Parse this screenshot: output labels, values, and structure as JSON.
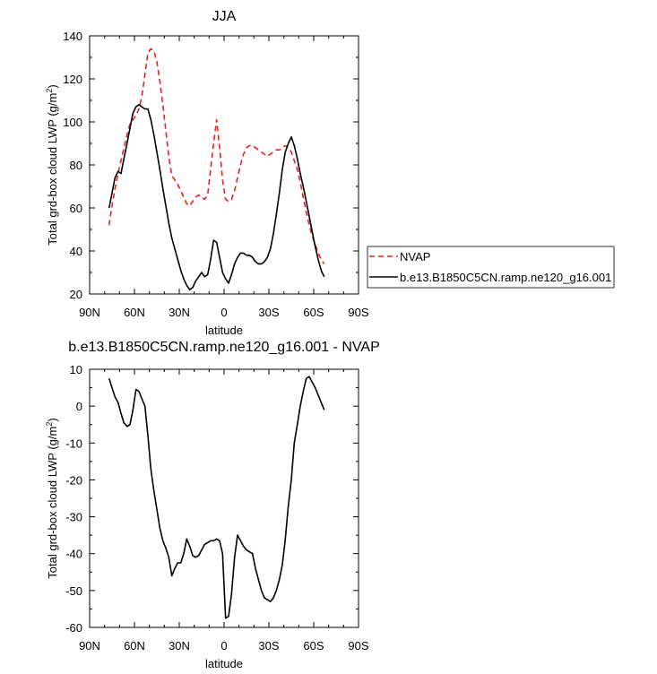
{
  "chart_data": [
    {
      "type": "line",
      "title": "JJA",
      "xlabel": "latitude",
      "ylabel": "Total grd-box cloud LWP (g/m",
      "ylabel_sup": "2",
      "ylabel_end": ")",
      "xlim": [
        90,
        -90
      ],
      "ylim": [
        20,
        140
      ],
      "xticks": [
        90,
        60,
        30,
        0,
        -30,
        -60,
        -90
      ],
      "xtick_labels": [
        "90N",
        "60N",
        "30N",
        "0",
        "30S",
        "60S",
        "90S"
      ],
      "yticks": [
        20,
        40,
        60,
        80,
        100,
        120,
        140
      ],
      "ytick_labels": [
        "20",
        "40",
        "60",
        "80",
        "100",
        "120",
        "140"
      ],
      "legend": {
        "placement": "right",
        "entries": [
          "NVAP",
          "b.e13.B1850C5CN.ramp.ne120_g16.001"
        ]
      },
      "series": [
        {
          "name": "NVAP",
          "color": "#e8211d",
          "dash": "dashed",
          "x": [
            77,
            75,
            73,
            71,
            69,
            67,
            65,
            63,
            61,
            59,
            57,
            55,
            53,
            51,
            49,
            47,
            45,
            43,
            41,
            39,
            37,
            35,
            33,
            31,
            29,
            27,
            25,
            23,
            21,
            19,
            17,
            15,
            13,
            11,
            9,
            7,
            5,
            3,
            1,
            -1,
            -3,
            -5,
            -7,
            -9,
            -11,
            -13,
            -15,
            -17,
            -19,
            -21,
            -23,
            -25,
            -27,
            -29,
            -31,
            -33,
            -35,
            -37,
            -39,
            -41,
            -43,
            -45,
            -47,
            -49,
            -51,
            -53,
            -55,
            -57,
            -59,
            -61,
            -63,
            -65,
            -67
          ],
          "y": [
            52,
            61,
            69,
            76,
            82,
            88,
            94,
            99,
            101,
            103,
            106,
            112,
            122,
            132,
            134,
            133,
            128,
            119,
            108,
            96,
            84,
            75,
            73,
            71,
            68,
            65,
            62,
            61,
            63,
            65,
            66,
            65,
            64,
            66,
            78,
            90,
            101,
            88,
            73,
            64,
            63,
            64,
            68,
            74,
            80,
            85,
            88,
            89,
            89,
            88,
            87,
            86,
            85,
            84,
            85,
            86,
            87,
            87,
            88,
            89,
            88,
            86,
            82,
            78,
            72,
            65,
            58,
            52,
            47,
            43,
            39,
            36,
            34
          ]
        },
        {
          "name": "b.e13.B1850C5CN.ramp.ne120_g16.001",
          "color": "#000000",
          "dash": "solid",
          "x": [
            77,
            75,
            73,
            71,
            69,
            67,
            65,
            63,
            61,
            59,
            57,
            55,
            53,
            51,
            49,
            47,
            45,
            43,
            41,
            39,
            37,
            35,
            33,
            31,
            29,
            27,
            25,
            23,
            21,
            19,
            17,
            15,
            13,
            11,
            9,
            7,
            5,
            3,
            1,
            -1,
            -3,
            -5,
            -7,
            -9,
            -11,
            -13,
            -15,
            -17,
            -19,
            -21,
            -23,
            -25,
            -27,
            -29,
            -31,
            -33,
            -35,
            -37,
            -39,
            -41,
            -43,
            -45,
            -47,
            -49,
            -51,
            -53,
            -55,
            -57,
            -59,
            -61,
            -63,
            -65,
            -67
          ],
          "y": [
            60,
            67,
            74,
            77,
            76,
            83,
            90,
            97,
            104,
            107,
            108,
            107,
            106,
            106,
            101,
            94,
            86,
            78,
            69,
            61,
            53,
            46,
            41,
            36,
            31,
            27,
            24,
            22,
            23,
            26,
            28,
            30,
            28,
            29,
            36,
            45,
            44,
            37,
            30,
            27,
            25,
            29,
            34,
            37,
            39,
            39,
            38,
            38,
            37,
            35,
            34,
            34,
            35,
            37,
            41,
            48,
            57,
            67,
            78,
            86,
            90,
            93,
            89,
            83,
            76,
            70,
            63,
            56,
            49,
            42,
            36,
            31,
            28
          ]
        }
      ]
    },
    {
      "type": "line",
      "title": "b.e13.B1850C5CN.ramp.ne120_g16.001 - NVAP",
      "xlabel": "latitude",
      "ylabel": "Total grd-box cloud LWP (g/m",
      "ylabel_sup": "2",
      "ylabel_end": ")",
      "xlim": [
        90,
        -90
      ],
      "ylim": [
        -60,
        10
      ],
      "xticks": [
        90,
        60,
        30,
        0,
        -30,
        -60,
        -90
      ],
      "xtick_labels": [
        "90N",
        "60N",
        "30N",
        "0",
        "30S",
        "60S",
        "90S"
      ],
      "yticks": [
        -60,
        -50,
        -40,
        -30,
        -20,
        -10,
        0,
        10
      ],
      "ytick_labels": [
        "-60",
        "-50",
        "-40",
        "-30",
        "-20",
        "-10",
        "0",
        "10"
      ],
      "series": [
        {
          "color": "#000000",
          "dash": "solid",
          "x": [
            77,
            75,
            73,
            71,
            69,
            67,
            65,
            63,
            61,
            59,
            57,
            55,
            53,
            51,
            49,
            47,
            45,
            43,
            41,
            39,
            37,
            35,
            33,
            31,
            29,
            27,
            25,
            23,
            21,
            19,
            17,
            15,
            13,
            11,
            9,
            7,
            5,
            3,
            1,
            -1,
            -3,
            -5,
            -7,
            -9,
            -11,
            -13,
            -15,
            -17,
            -19,
            -21,
            -23,
            -25,
            -27,
            -29,
            -31,
            -33,
            -35,
            -37,
            -39,
            -41,
            -43,
            -45,
            -47,
            -49,
            -51,
            -53,
            -55,
            -57,
            -59,
            -61,
            -63,
            -65,
            -67
          ],
          "y": [
            7.5,
            5,
            2.5,
            1,
            -2,
            -4.5,
            -5.5,
            -5,
            -1,
            4.5,
            4,
            2,
            0,
            -8,
            -17,
            -23,
            -28,
            -33,
            -36.5,
            -38.5,
            -41,
            -46,
            -44,
            -42.5,
            -42.5,
            -40,
            -36,
            -38,
            -40.5,
            -41,
            -40.5,
            -39,
            -37.5,
            -37,
            -36.5,
            -36.5,
            -36,
            -36.5,
            -40,
            -57.5,
            -57,
            -51,
            -41,
            -35,
            -36.5,
            -38,
            -39,
            -39.5,
            -40,
            -44,
            -47,
            -50,
            -52,
            -52.5,
            -53,
            -52,
            -50,
            -47,
            -43,
            -36,
            -27,
            -20,
            -10,
            -5,
            0,
            4,
            7.5,
            8,
            6.5,
            5,
            3,
            1,
            -1
          ]
        }
      ]
    }
  ]
}
